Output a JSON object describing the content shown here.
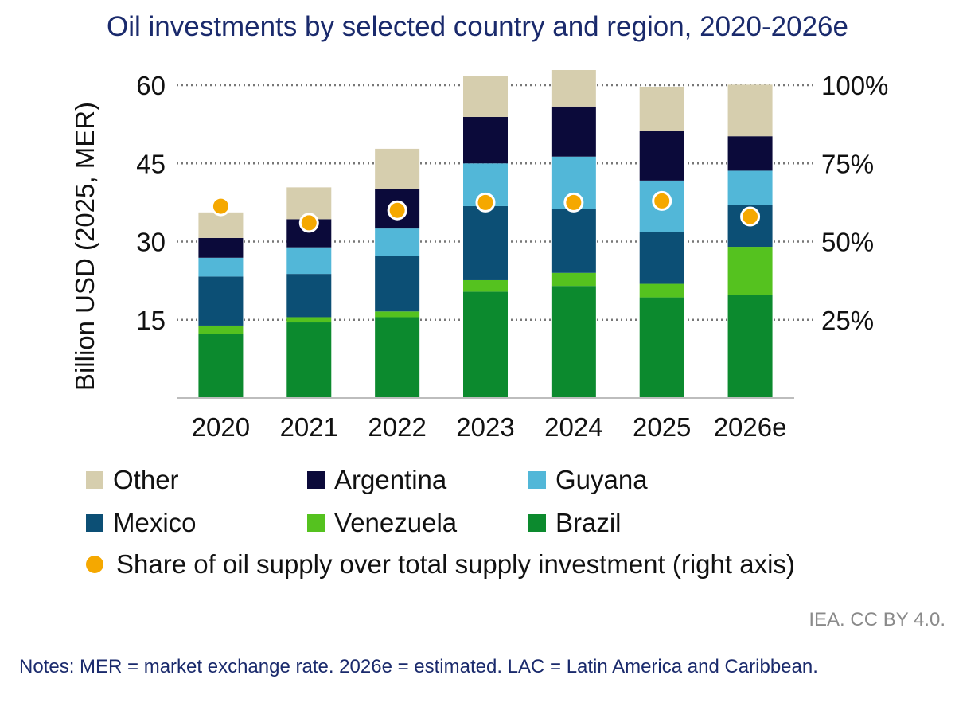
{
  "chart_data": {
    "type": "bar",
    "stacked": true,
    "title": "Oil investments by selected country and region, 2020-2026e",
    "ylabel": "Billion USD (2025, MER)",
    "ylim": [
      0,
      60
    ],
    "yticks": [
      15,
      30,
      45,
      60
    ],
    "y2lim": [
      0,
      1
    ],
    "y2ticks": [
      "25%",
      "50%",
      "75%",
      "100%"
    ],
    "grid": "dotted horizontal",
    "categories": [
      "2020",
      "2021",
      "2022",
      "2023",
      "2024",
      "2025",
      "2026e"
    ],
    "series": [
      {
        "name": "Brazil",
        "color": "#0c8a2e",
        "values": [
          12.3,
          14.5,
          15.5,
          20.4,
          21.5,
          19.3,
          19.8
        ]
      },
      {
        "name": "Venezuela",
        "color": "#55c21f",
        "values": [
          1.6,
          1.0,
          1.1,
          2.2,
          2.5,
          2.6,
          9.2
        ]
      },
      {
        "name": "Mexico",
        "color": "#0c4f75",
        "values": [
          9.4,
          8.3,
          10.6,
          14.2,
          12.2,
          9.9,
          8.0
        ]
      },
      {
        "name": "Guyana",
        "color": "#52b7d8",
        "values": [
          3.6,
          5.1,
          5.3,
          8.2,
          10.1,
          9.9,
          6.6
        ]
      },
      {
        "name": "Argentina",
        "color": "#0b0a3a",
        "values": [
          3.8,
          5.4,
          7.6,
          8.9,
          9.6,
          9.6,
          6.6
        ]
      },
      {
        "name": "Other",
        "color": "#d6ceae",
        "values": [
          4.9,
          6.1,
          7.7,
          7.8,
          7.0,
          8.4,
          9.9
        ]
      }
    ],
    "share_series": {
      "name": "Share of oil supply over total supply investment (right axis)",
      "color": "#f5a800",
      "values": [
        0.613,
        0.56,
        0.6,
        0.625,
        0.625,
        0.63,
        0.58
      ]
    },
    "legend": "bottom"
  },
  "legend_items": [
    {
      "label": "Other",
      "color": "#d6ceae"
    },
    {
      "label": "Argentina",
      "color": "#0b0a3a"
    },
    {
      "label": "Guyana",
      "color": "#52b7d8"
    },
    {
      "label": "Mexico",
      "color": "#0c4f75"
    },
    {
      "label": "Venezuela",
      "color": "#55c21f"
    },
    {
      "label": "Brazil",
      "color": "#0c8a2e"
    }
  ],
  "source_credit": "IEA. CC BY 4.0.",
  "notes": "Notes: MER = market exchange rate. 2026e = estimated. LAC = Latin America and Caribbean."
}
